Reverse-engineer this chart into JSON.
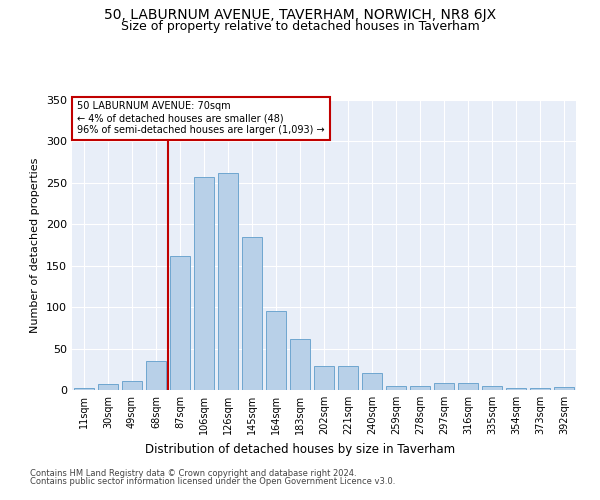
{
  "title1": "50, LABURNUM AVENUE, TAVERHAM, NORWICH, NR8 6JX",
  "title2": "Size of property relative to detached houses in Taverham",
  "xlabel": "Distribution of detached houses by size in Taverham",
  "ylabel": "Number of detached properties",
  "categories": [
    "11sqm",
    "30sqm",
    "49sqm",
    "68sqm",
    "87sqm",
    "106sqm",
    "126sqm",
    "145sqm",
    "164sqm",
    "183sqm",
    "202sqm",
    "221sqm",
    "240sqm",
    "259sqm",
    "278sqm",
    "297sqm",
    "316sqm",
    "335sqm",
    "354sqm",
    "373sqm",
    "392sqm"
  ],
  "values": [
    2,
    7,
    11,
    35,
    162,
    257,
    262,
    185,
    95,
    61,
    29,
    29,
    20,
    5,
    5,
    9,
    8,
    5,
    3,
    3,
    4
  ],
  "bar_color": "#b8d0e8",
  "bar_edge_color": "#6ea6d0",
  "vline_x": 3.5,
  "vline_color": "#c00000",
  "annotation_text": "50 LABURNUM AVENUE: 70sqm\n← 4% of detached houses are smaller (48)\n96% of semi-detached houses are larger (1,093) →",
  "annotation_box_color": "#ffffff",
  "annotation_box_edge": "#c00000",
  "ylim": [
    0,
    350
  ],
  "yticks": [
    0,
    50,
    100,
    150,
    200,
    250,
    300,
    350
  ],
  "footer1": "Contains HM Land Registry data © Crown copyright and database right 2024.",
  "footer2": "Contains public sector information licensed under the Open Government Licence v3.0.",
  "plot_bg_color": "#e8eef8",
  "title1_fontsize": 10,
  "title2_fontsize": 9
}
